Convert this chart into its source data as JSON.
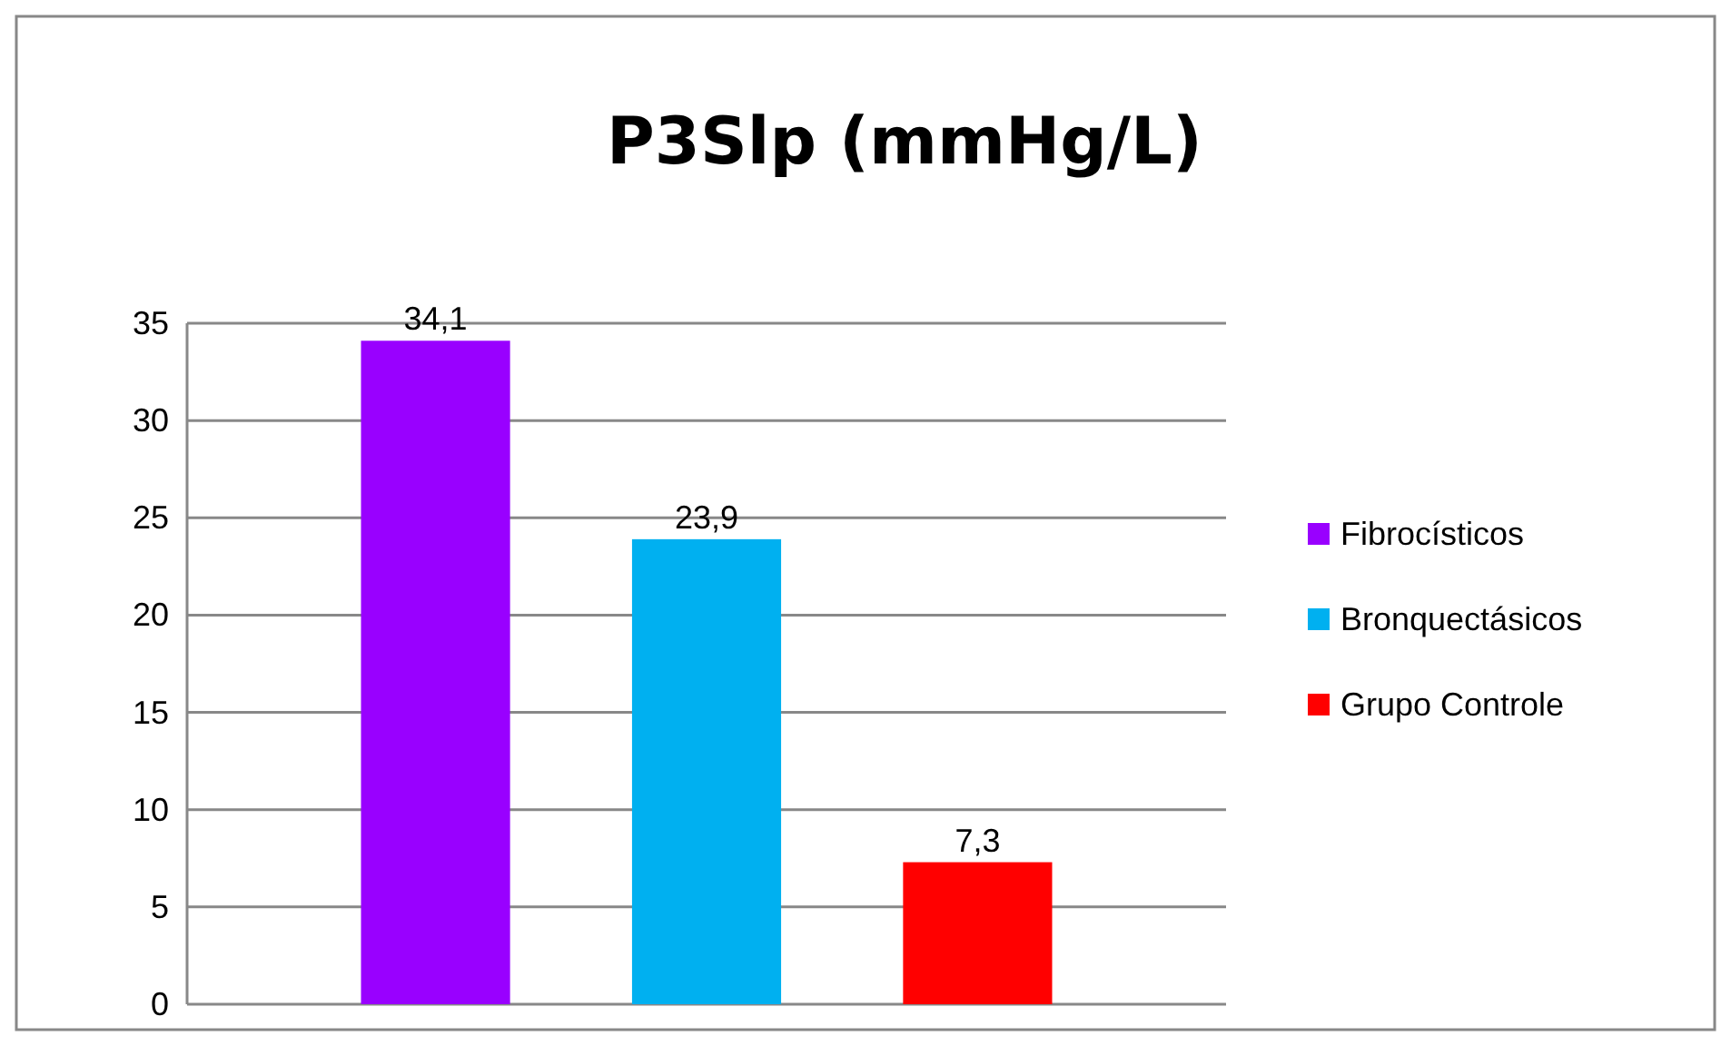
{
  "chart_data": {
    "type": "bar",
    "title": "P3Slp (mmHg/L)",
    "categories": [
      null
    ],
    "series": [
      {
        "name": "Fibrocísticos",
        "color": "#9900ff",
        "values": [
          34.1
        ],
        "value_labels": [
          "34,1"
        ]
      },
      {
        "name": "Bronquectásicos",
        "color": "#00b0f0",
        "values": [
          23.9
        ],
        "value_labels": [
          "23,9"
        ]
      },
      {
        "name": "Grupo Controle",
        "color": "#ff0000",
        "values": [
          7.3
        ],
        "value_labels": [
          "7,3"
        ]
      }
    ],
    "ylim": [
      0,
      35
    ],
    "yticks": [
      0,
      5,
      10,
      15,
      20,
      25,
      30,
      35
    ],
    "grid": "y",
    "legend": "right"
  }
}
